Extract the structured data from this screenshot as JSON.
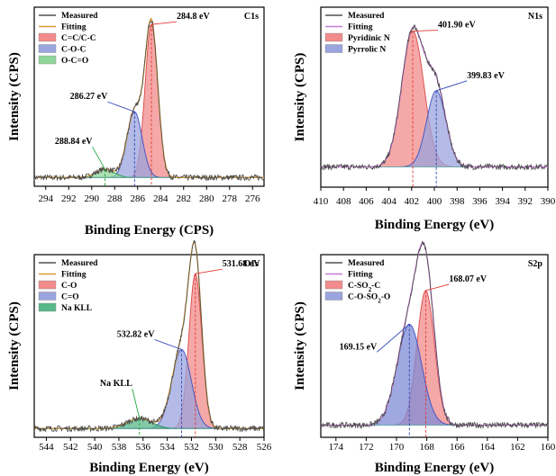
{
  "chart_data": [
    {
      "id": "C1s",
      "type": "line",
      "panel_label": "C1s",
      "xlabel": "Binding Energy (CPS)",
      "ylabel": "Intensity (CPS)",
      "xlim": [
        295,
        275
      ],
      "xticks": [
        294,
        292,
        290,
        288,
        286,
        284,
        282,
        280,
        278,
        276
      ],
      "y_max": 1.0,
      "legend": {
        "position": "top-left",
        "entries": [
          {
            "label": "Measured",
            "kind": "line",
            "color": "#505050"
          },
          {
            "label": "Fitting",
            "kind": "line",
            "color": "#d79a32"
          },
          {
            "label": "C=C/C-C",
            "kind": "patch",
            "color": "#f28b8b"
          },
          {
            "label": "C-O-C",
            "kind": "patch",
            "color": "#9aa4de"
          },
          {
            "label": "O-C=O",
            "kind": "patch",
            "color": "#8fd69a"
          }
        ]
      },
      "baseline": 0.02,
      "peaks": [
        {
          "name": "C=C/C-C",
          "center": 284.8,
          "height": 0.93,
          "fwhm": 1.3,
          "fill": "#f28b8b",
          "edge": "#d94848",
          "label": "284.8 eV",
          "label_color": "#e53935"
        },
        {
          "name": "C-O-C",
          "center": 286.27,
          "height": 0.4,
          "fwhm": 1.55,
          "fill": "#9aa4de",
          "edge": "#3c4fc0",
          "label": "286.27 eV",
          "label_color": "#2f45b5"
        },
        {
          "name": "O-C=O",
          "center": 288.84,
          "height": 0.05,
          "fwhm": 1.9,
          "fill": "#8fd69a",
          "edge": "#2e9e48",
          "label": "288.84 eV",
          "label_color": "#27a640"
        }
      ]
    },
    {
      "id": "N1s",
      "type": "line",
      "panel_label": "N1s",
      "xlabel": "Binding Energy (eV)",
      "ylabel": "Intensity (CPS)",
      "xlim": [
        410,
        390
      ],
      "xticks": [
        410,
        408,
        406,
        404,
        402,
        400,
        398,
        396,
        394,
        392,
        390
      ],
      "y_max": 1.0,
      "legend": {
        "position": "top-left",
        "entries": [
          {
            "label": "Measured",
            "kind": "line",
            "color": "#505050"
          },
          {
            "label": "Fitting",
            "kind": "line",
            "color": "#c87ad8"
          },
          {
            "label": "Pyridinic N",
            "kind": "patch",
            "color": "#f28b8b"
          },
          {
            "label": "Pyrrolic N",
            "kind": "patch",
            "color": "#9aa4de"
          }
        ]
      },
      "baseline": 0.09,
      "peaks": [
        {
          "name": "Pyridinic N",
          "center": 401.9,
          "height": 0.82,
          "fwhm": 2.3,
          "fill": "#f28b8b",
          "edge": "#d94848",
          "label": "401.90 eV",
          "label_color": "#e53935"
        },
        {
          "name": "Pyrrolic N",
          "center": 399.83,
          "height": 0.46,
          "fwhm": 2.0,
          "fill": "#9aa4de",
          "edge": "#3c4fc0",
          "label": "399.83 eV",
          "label_color": "#2f45b5"
        }
      ]
    },
    {
      "id": "O1s",
      "type": "line",
      "panel_label": "O1s",
      "xlabel": "Binding Energy (eV)",
      "ylabel": "Intensity (CPS)",
      "xlim": [
        545,
        526
      ],
      "xticks": [
        544,
        542,
        540,
        538,
        536,
        534,
        532,
        530,
        528,
        526
      ],
      "y_max": 1.0,
      "legend": {
        "position": "top-left",
        "entries": [
          {
            "label": "Measured",
            "kind": "line",
            "color": "#505050"
          },
          {
            "label": "Fitting",
            "kind": "line",
            "color": "#d79a32"
          },
          {
            "label": "C-O",
            "kind": "patch",
            "color": "#f28b8b"
          },
          {
            "label": "C=O",
            "kind": "patch",
            "color": "#9aa4de"
          },
          {
            "label": "Na KLL",
            "kind": "patch",
            "color": "#58b88a"
          }
        ]
      },
      "baseline": 0.02,
      "peaks": [
        {
          "name": "C-O",
          "center": 531.68,
          "height": 0.92,
          "fwhm": 1.25,
          "fill": "#f28b8b",
          "edge": "#d94848",
          "label": "531.68 eV",
          "label_color": "#e53935"
        },
        {
          "name": "C=O",
          "center": 532.82,
          "height": 0.47,
          "fwhm": 1.9,
          "fill": "#9aa4de",
          "edge": "#3c4fc0",
          "label": "532.82 eV",
          "label_color": "#2f45b5"
        },
        {
          "name": "Na KLL",
          "center": 536.3,
          "height": 0.06,
          "fwhm": 2.4,
          "fill": "#58b88a",
          "edge": "#1f8a52",
          "label": "Na KLL",
          "label_color": "#27a640"
        }
      ]
    },
    {
      "id": "S2p",
      "type": "line",
      "panel_label": "S2p",
      "xlabel": "Binding Energy (eV)",
      "ylabel": "Intensity (CPS)",
      "xlim": [
        175,
        160
      ],
      "xticks": [
        174,
        172,
        170,
        168,
        166,
        164,
        162,
        160
      ],
      "y_max": 1.0,
      "legend": {
        "position": "top-left",
        "entries": [
          {
            "label": "Measured",
            "kind": "line",
            "color": "#505050"
          },
          {
            "label": "Fitting",
            "kind": "line",
            "color": "#c87ad8"
          },
          {
            "label": "C-SO2-C",
            "kind": "patch",
            "color": "#f28b8b",
            "sub": "2"
          },
          {
            "label": "C-O-SO2-O",
            "kind": "patch",
            "color": "#9aa4de",
            "sub": "2"
          }
        ]
      },
      "baseline": 0.04,
      "peaks": [
        {
          "name": "C-SO2-C",
          "center": 168.07,
          "height": 0.8,
          "fwhm": 1.35,
          "fill": "#f28b8b",
          "edge": "#d94848",
          "label": "168.07 eV",
          "label_color": "#e53935"
        },
        {
          "name": "C-O-SO2-O",
          "center": 169.15,
          "height": 0.6,
          "fwhm": 1.9,
          "fill": "#7f8bd6",
          "edge": "#3c4fc0",
          "label": "169.15 eV",
          "label_color": "#2f45b5"
        }
      ]
    }
  ]
}
